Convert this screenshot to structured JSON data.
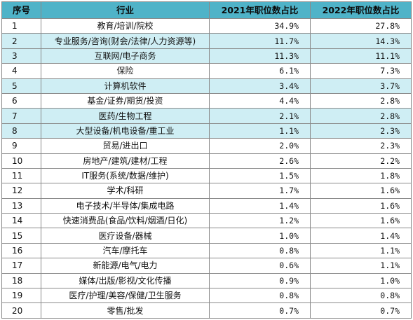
{
  "header": {
    "col_index": "序号",
    "col_industry": "行业",
    "col_2021": "2021年职位数占比",
    "col_2022": "2022年职位数占比"
  },
  "colors": {
    "header_bg": "#4fb3c8",
    "highlight_bg": "#cfeef4",
    "border": "#8a8a8a"
  },
  "rows": [
    {
      "index": "1",
      "industry": "教育/培训/院校",
      "y2021": "34.9%",
      "y2022": "27.8%",
      "highlight": false
    },
    {
      "index": "2",
      "industry": "专业服务/咨询(财会/法律/人力资源等)",
      "y2021": "11.7%",
      "y2022": "14.3%",
      "highlight": true
    },
    {
      "index": "3",
      "industry": "互联网/电子商务",
      "y2021": "11.3%",
      "y2022": "11.1%",
      "highlight": true
    },
    {
      "index": "4",
      "industry": "保险",
      "y2021": "6.1%",
      "y2022": "7.3%",
      "highlight": false
    },
    {
      "index": "5",
      "industry": "计算机软件",
      "y2021": "3.4%",
      "y2022": "3.7%",
      "highlight": true
    },
    {
      "index": "6",
      "industry": "基金/证券/期货/投资",
      "y2021": "4.4%",
      "y2022": "2.8%",
      "highlight": false
    },
    {
      "index": "7",
      "industry": "医药/生物工程",
      "y2021": "2.1%",
      "y2022": "2.8%",
      "highlight": true
    },
    {
      "index": "8",
      "industry": "大型设备/机电设备/重工业",
      "y2021": "1.1%",
      "y2022": "2.3%",
      "highlight": true
    },
    {
      "index": "9",
      "industry": "贸易/进出口",
      "y2021": "2.0%",
      "y2022": "2.3%",
      "highlight": false
    },
    {
      "index": "10",
      "industry": "房地产/建筑/建材/工程",
      "y2021": "2.6%",
      "y2022": "2.2%",
      "highlight": false
    },
    {
      "index": "11",
      "industry": "IT服务(系统/数据/维护)",
      "y2021": "1.5%",
      "y2022": "1.8%",
      "highlight": false
    },
    {
      "index": "12",
      "industry": "学术/科研",
      "y2021": "1.7%",
      "y2022": "1.6%",
      "highlight": false
    },
    {
      "index": "13",
      "industry": "电子技术/半导体/集成电路",
      "y2021": "1.4%",
      "y2022": "1.6%",
      "highlight": false
    },
    {
      "index": "14",
      "industry": "快速消费品(食品/饮料/烟酒/日化)",
      "y2021": "1.2%",
      "y2022": "1.6%",
      "highlight": false
    },
    {
      "index": "15",
      "industry": "医疗设备/器械",
      "y2021": "1.0%",
      "y2022": "1.4%",
      "highlight": false
    },
    {
      "index": "16",
      "industry": "汽车/摩托车",
      "y2021": "0.8%",
      "y2022": "1.1%",
      "highlight": false
    },
    {
      "index": "17",
      "industry": "新能源/电气/电力",
      "y2021": "0.6%",
      "y2022": "1.1%",
      "highlight": false
    },
    {
      "index": "18",
      "industry": "媒体/出版/影视/文化传播",
      "y2021": "0.9%",
      "y2022": "1.0%",
      "highlight": false
    },
    {
      "index": "19",
      "industry": "医疗/护理/美容/保健/卫生服务",
      "y2021": "0.8%",
      "y2022": "0.8%",
      "highlight": false
    },
    {
      "index": "20",
      "industry": "零售/批发",
      "y2021": "0.7%",
      "y2022": "0.7%",
      "highlight": false
    }
  ]
}
